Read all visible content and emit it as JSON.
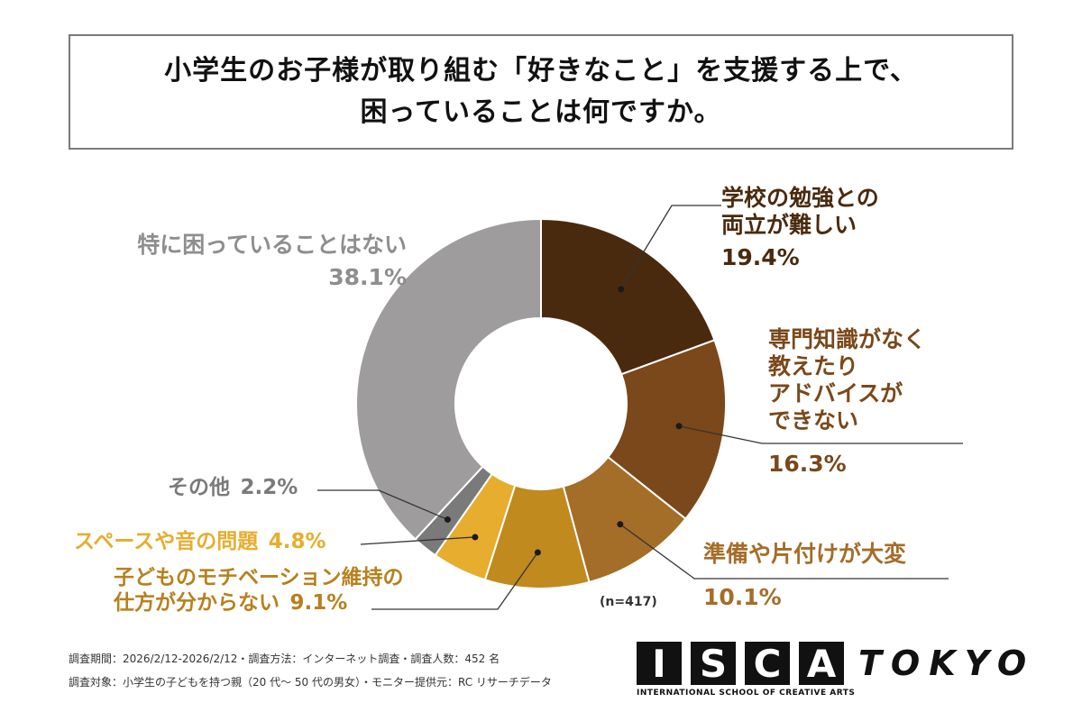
{
  "title": {
    "line1": "小学生のお子様が取り組む「好きなこと」を支援する上で、",
    "line2": "困っていることは何ですか。"
  },
  "chart_data": {
    "type": "pie",
    "donut": true,
    "slices": [
      {
        "label_lines": [
          "学校の勉強との",
          "両立が難しい"
        ],
        "value": 19.4,
        "value_text": "19.4%",
        "color": "#4a2a0e"
      },
      {
        "label_lines": [
          "専門知識がなく",
          "教えたり",
          "アドバイスが",
          "できない"
        ],
        "value": 16.3,
        "value_text": "16.3%",
        "color": "#7a481a"
      },
      {
        "label_lines": [
          "準備や片付けが大変"
        ],
        "value": 10.1,
        "value_text": "10.1%",
        "color": "#a46d28"
      },
      {
        "label_lines": [
          "子どものモチベーション維持の",
          "仕方が分からない"
        ],
        "value": 9.1,
        "value_text": "9.1%",
        "color": "#c08a1e"
      },
      {
        "label_lines": [
          "スペースや音の問題"
        ],
        "value": 4.8,
        "value_text": "4.8%",
        "color": "#e6ad2e"
      },
      {
        "label_lines": [
          "その他"
        ],
        "value": 2.2,
        "value_text": "2.2%",
        "color": "#7a7a7a"
      },
      {
        "label_lines": [
          "特に困っていることはない"
        ],
        "value": 38.1,
        "value_text": "38.1%",
        "color": "#9e9c9d"
      }
    ],
    "sample_note": "(n=417)"
  },
  "footer": {
    "line1": "調査期間：2026/2/12-2026/2/12・調査方法：インターネット調査・調査人数：452 名",
    "line2": "調査対象：小学生の子どもを持つ親（20 代～ 50 代の男女）・モニター提供元：RC リサーチデータ"
  },
  "logo": {
    "letters": [
      "I",
      "S",
      "C",
      "A"
    ],
    "tokyo": "TOKYO",
    "subtitle": "INTERNATIONAL SCHOOL OF CREATIVE ARTS"
  }
}
